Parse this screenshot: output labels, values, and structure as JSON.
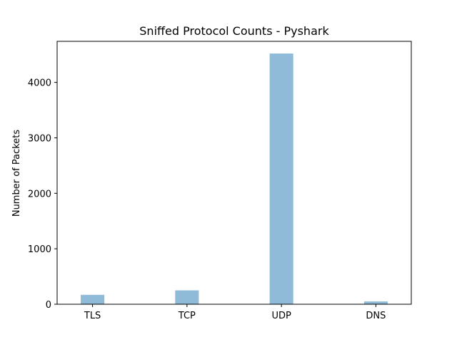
{
  "chart_data": {
    "type": "bar",
    "title": "Sniffed Protocol Counts - Pyshark",
    "xlabel": "",
    "ylabel": "Number of Packets",
    "categories": [
      "TLS",
      "TCP",
      "UDP",
      "DNS"
    ],
    "values": [
      170,
      250,
      4520,
      50
    ],
    "ylim": [
      0,
      4740
    ],
    "yticks": [
      0,
      1000,
      2000,
      3000,
      4000
    ],
    "grid": false,
    "bar_color": "#8fbbd9"
  }
}
